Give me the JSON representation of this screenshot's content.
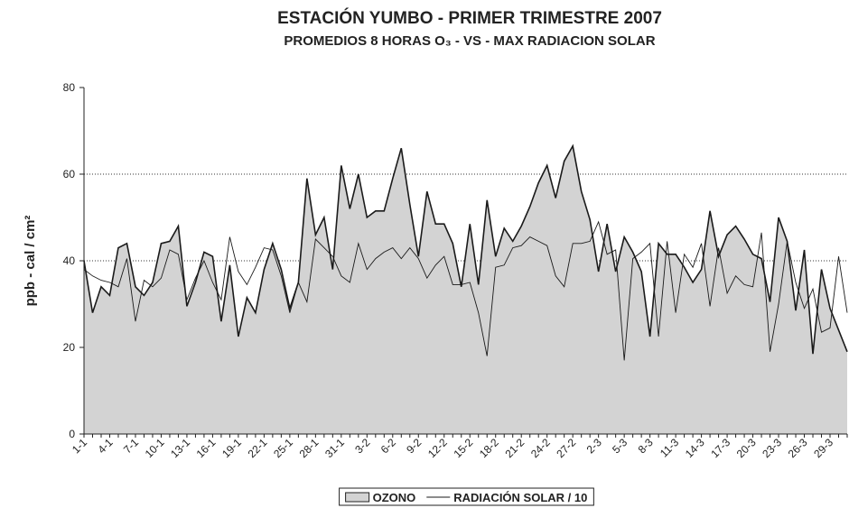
{
  "chart_data": {
    "type": "area-line",
    "title": "ESTACIÓN YUMBO - PRIMER TRIMESTRE 2007",
    "subtitle": "PROMEDIOS 8 HORAS O₃ - VS - MAX RADIACION SOLAR",
    "y_label": "ppb - cal / cm²",
    "categories": [
      "1-1",
      null,
      null,
      "4-1",
      null,
      null,
      "7-1",
      null,
      null,
      "10-1",
      null,
      null,
      "13-1",
      null,
      null,
      "16-1",
      null,
      null,
      "19-1",
      null,
      null,
      "22-1",
      null,
      null,
      "25-1",
      null,
      null,
      "28-1",
      null,
      null,
      "31-1",
      null,
      null,
      "3-2",
      null,
      null,
      "6-2",
      null,
      null,
      "9-2",
      null,
      null,
      "12-2",
      null,
      null,
      "15-2",
      null,
      null,
      "18-2",
      null,
      null,
      "21-2",
      null,
      null,
      "24-2",
      null,
      null,
      "27-2",
      null,
      null,
      "2-3",
      null,
      null,
      "5-3",
      null,
      null,
      "8-3",
      null,
      null,
      "11-3",
      null,
      null,
      "14-3",
      null,
      null,
      "17-3",
      null,
      null,
      "20-3",
      null,
      null,
      "23-3",
      null,
      null,
      "26-3",
      null,
      null,
      "29-3",
      null,
      null
    ],
    "series": [
      {
        "name": "OZONO",
        "kind": "area",
        "color": "#d3d3d3",
        "values": [
          40,
          28,
          34,
          32,
          43,
          44,
          34,
          32,
          35,
          44,
          44.5,
          48,
          29.5,
          35,
          42,
          41,
          26,
          39,
          22.5,
          31.5,
          28,
          38,
          44,
          38,
          29,
          35,
          59,
          46,
          50,
          38,
          62,
          52,
          60,
          50,
          51.5,
          51.5,
          59,
          66,
          53,
          41,
          56,
          48.5,
          48.5,
          44,
          34,
          48.5,
          34.5,
          54,
          41,
          47.5,
          44.5,
          48,
          52.5,
          58,
          62,
          54.5,
          63,
          66.5,
          56,
          49.5,
          37.5,
          48.5,
          37.5,
          45.5,
          42,
          37.5,
          22.5,
          44,
          41.5,
          41.5,
          38.5,
          35,
          38,
          51.5,
          41,
          46,
          48,
          45,
          41.5,
          40.5,
          30.5,
          50,
          44.5,
          28.5,
          42.5,
          18.5,
          38,
          29,
          24,
          19
        ]
      },
      {
        "name": "RADIACIÓN SOLAR / 10",
        "kind": "line",
        "color": "#1a1a1a",
        "values": [
          38,
          36.5,
          35.5,
          35,
          34,
          40.5,
          26,
          35.5,
          34,
          36,
          42.5,
          41.5,
          31,
          36,
          40,
          35,
          31,
          45.5,
          37.5,
          34.5,
          38.5,
          43,
          42.5,
          36.5,
          28,
          35,
          30.5,
          45,
          43,
          41,
          36.5,
          35,
          44,
          38,
          40.5,
          42,
          43,
          40.5,
          43,
          40.5,
          36,
          39,
          41,
          34.5,
          34.5,
          35,
          28,
          18,
          38.5,
          39,
          43,
          43.5,
          45.5,
          44.5,
          43.5,
          36.5,
          34,
          44,
          44,
          44.5,
          49,
          41.5,
          42.5,
          17,
          40.5,
          42,
          44,
          22.5,
          44.5,
          28,
          41.5,
          38.5,
          44,
          29.5,
          43,
          32.5,
          36.5,
          34.5,
          34,
          46.5,
          19,
          30,
          44.5,
          35,
          29,
          33.5,
          23.5,
          24.5,
          41,
          28
        ]
      }
    ],
    "ylim": [
      0,
      80
    ],
    "yticks": [
      0,
      20,
      40,
      60,
      80
    ],
    "grid": true,
    "legend": "bottom"
  }
}
